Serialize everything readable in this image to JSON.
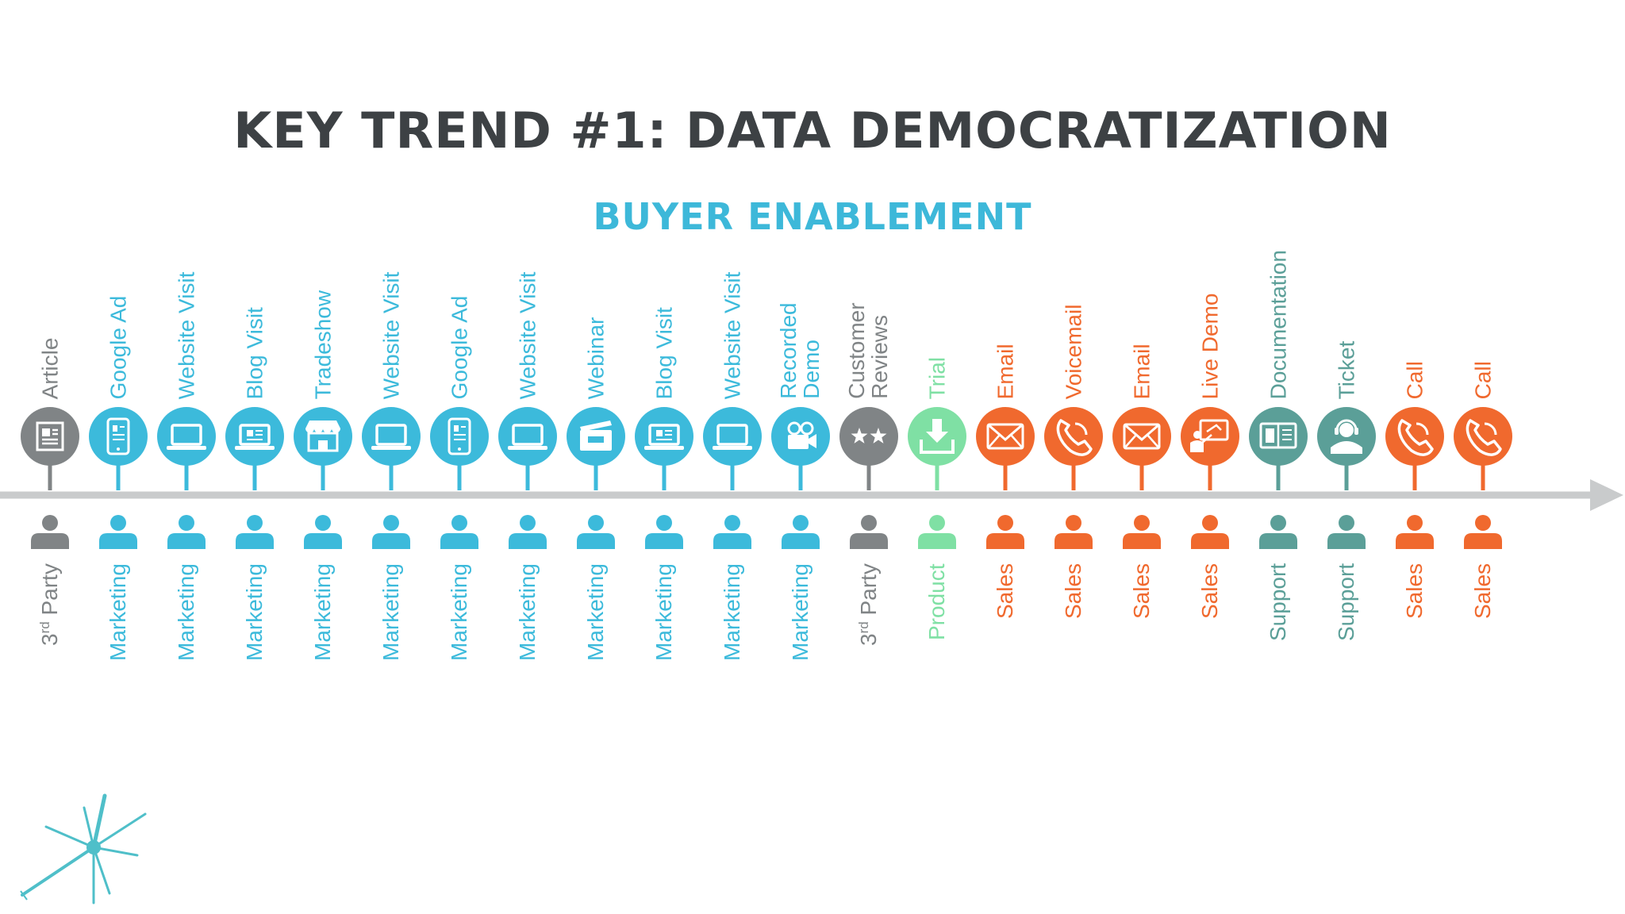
{
  "title": "KEY TREND #1: DATA DEMOCRATIZATION",
  "subtitle": "BUYER ENABLEMENT",
  "colors": {
    "grey": "#808486",
    "blue": "#3cbadb",
    "green": "#7fe0a4",
    "orange": "#f0692e",
    "teal": "#5b9f98",
    "axis": "#c9cbcc",
    "title": "#3d4144",
    "star": "#4fbfc9"
  },
  "touchpoints": [
    {
      "label": [
        "Article"
      ],
      "icon": "article-icon",
      "owner": "3rd Party",
      "color": "grey"
    },
    {
      "label": [
        "Google Ad"
      ],
      "icon": "phone-ad-icon",
      "owner": "Marketing",
      "color": "blue"
    },
    {
      "label": [
        "Website Visit"
      ],
      "icon": "laptop-icon",
      "owner": "Marketing",
      "color": "blue"
    },
    {
      "label": [
        "Blog Visit"
      ],
      "icon": "blog-laptop-icon",
      "owner": "Marketing",
      "color": "blue"
    },
    {
      "label": [
        "Tradeshow"
      ],
      "icon": "booth-icon",
      "owner": "Marketing",
      "color": "blue"
    },
    {
      "label": [
        "Website Visit"
      ],
      "icon": "laptop-icon",
      "owner": "Marketing",
      "color": "blue"
    },
    {
      "label": [
        "Google Ad"
      ],
      "icon": "phone-ad-icon",
      "owner": "Marketing",
      "color": "blue"
    },
    {
      "label": [
        "Website Visit"
      ],
      "icon": "laptop-icon",
      "owner": "Marketing",
      "color": "blue"
    },
    {
      "label": [
        "Webinar"
      ],
      "icon": "clapperboard-icon",
      "owner": "Marketing",
      "color": "blue"
    },
    {
      "label": [
        "Blog Visit"
      ],
      "icon": "blog-laptop-icon",
      "owner": "Marketing",
      "color": "blue"
    },
    {
      "label": [
        "Website Visit"
      ],
      "icon": "laptop-icon",
      "owner": "Marketing",
      "color": "blue"
    },
    {
      "label": [
        "Recorded",
        "Demo"
      ],
      "icon": "video-camera-icon",
      "owner": "Marketing",
      "color": "blue"
    },
    {
      "label": [
        "Customer",
        "Reviews"
      ],
      "icon": "stars-icon",
      "owner": "3rd Party",
      "color": "grey"
    },
    {
      "label": [
        "Trial"
      ],
      "icon": "download-icon",
      "owner": "Product",
      "color": "green"
    },
    {
      "label": [
        "Email"
      ],
      "icon": "envelope-icon",
      "owner": "Sales",
      "color": "orange"
    },
    {
      "label": [
        "Voicemail"
      ],
      "icon": "phone-icon",
      "owner": "Sales",
      "color": "orange"
    },
    {
      "label": [
        "Email"
      ],
      "icon": "envelope-icon",
      "owner": "Sales",
      "color": "orange"
    },
    {
      "label": [
        "Live Demo"
      ],
      "icon": "presenter-icon",
      "owner": "Sales",
      "color": "orange"
    },
    {
      "label": [
        "Documentation"
      ],
      "icon": "book-icon",
      "owner": "Support",
      "color": "teal"
    },
    {
      "label": [
        "Ticket"
      ],
      "icon": "headset-agent-icon",
      "owner": "Support",
      "color": "teal"
    },
    {
      "label": [
        "Call"
      ],
      "icon": "phone-icon",
      "owner": "Sales",
      "color": "orange"
    },
    {
      "label": [
        "Call"
      ],
      "icon": "phone-icon",
      "owner": "Sales",
      "color": "orange"
    }
  ]
}
